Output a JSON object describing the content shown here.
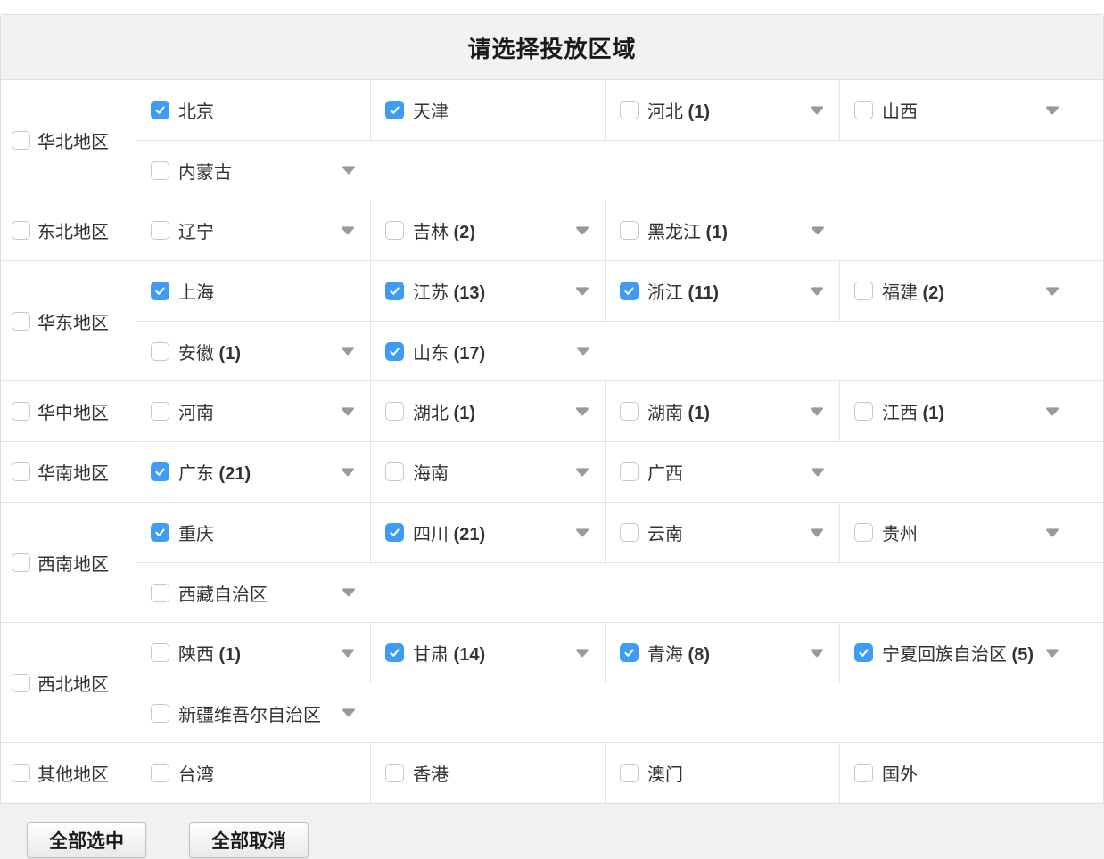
{
  "title": "请选择投放区域",
  "colors": {
    "checkbox_checked": "#3e9cf6",
    "header_bg": "#f2f2f2",
    "border": "#e3e3e3",
    "arrow": "#9a9a9a"
  },
  "buttons": {
    "select_all_label": "全部选中",
    "cancel_all_label": "全部取消"
  },
  "regions": [
    {
      "label": "华北地区",
      "checked": false,
      "provinces": [
        {
          "name": "北京",
          "checked": true,
          "count": null,
          "arrow": false
        },
        {
          "name": "天津",
          "checked": true,
          "count": null,
          "arrow": false
        },
        {
          "name": "河北",
          "checked": false,
          "count": 1,
          "arrow": true
        },
        {
          "name": "山西",
          "checked": false,
          "count": null,
          "arrow": true
        },
        {
          "name": "内蒙古",
          "checked": false,
          "count": null,
          "arrow": true
        }
      ]
    },
    {
      "label": "东北地区",
      "checked": false,
      "provinces": [
        {
          "name": "辽宁",
          "checked": false,
          "count": null,
          "arrow": true
        },
        {
          "name": "吉林",
          "checked": false,
          "count": 2,
          "arrow": true
        },
        {
          "name": "黑龙江",
          "checked": false,
          "count": 1,
          "arrow": true
        }
      ]
    },
    {
      "label": "华东地区",
      "checked": false,
      "provinces": [
        {
          "name": "上海",
          "checked": true,
          "count": null,
          "arrow": false
        },
        {
          "name": "江苏",
          "checked": true,
          "count": 13,
          "arrow": true
        },
        {
          "name": "浙江",
          "checked": true,
          "count": 11,
          "arrow": true
        },
        {
          "name": "福建",
          "checked": false,
          "count": 2,
          "arrow": true
        },
        {
          "name": "安徽",
          "checked": false,
          "count": 1,
          "arrow": true
        },
        {
          "name": "山东",
          "checked": true,
          "count": 17,
          "arrow": true
        }
      ]
    },
    {
      "label": "华中地区",
      "checked": false,
      "provinces": [
        {
          "name": "河南",
          "checked": false,
          "count": null,
          "arrow": true
        },
        {
          "name": "湖北",
          "checked": false,
          "count": 1,
          "arrow": true
        },
        {
          "name": "湖南",
          "checked": false,
          "count": 1,
          "arrow": true
        },
        {
          "name": "江西",
          "checked": false,
          "count": 1,
          "arrow": true
        }
      ]
    },
    {
      "label": "华南地区",
      "checked": false,
      "provinces": [
        {
          "name": "广东",
          "checked": true,
          "count": 21,
          "arrow": true
        },
        {
          "name": "海南",
          "checked": false,
          "count": null,
          "arrow": true
        },
        {
          "name": "广西",
          "checked": false,
          "count": null,
          "arrow": true
        }
      ]
    },
    {
      "label": "西南地区",
      "checked": false,
      "provinces": [
        {
          "name": "重庆",
          "checked": true,
          "count": null,
          "arrow": false
        },
        {
          "name": "四川",
          "checked": true,
          "count": 21,
          "arrow": true
        },
        {
          "name": "云南",
          "checked": false,
          "count": null,
          "arrow": true
        },
        {
          "name": "贵州",
          "checked": false,
          "count": null,
          "arrow": true
        },
        {
          "name": "西藏自治区",
          "checked": false,
          "count": null,
          "arrow": true
        }
      ]
    },
    {
      "label": "西北地区",
      "checked": false,
      "provinces": [
        {
          "name": "陕西",
          "checked": false,
          "count": 1,
          "arrow": true
        },
        {
          "name": "甘肃",
          "checked": true,
          "count": 14,
          "arrow": true
        },
        {
          "name": "青海",
          "checked": true,
          "count": 8,
          "arrow": true
        },
        {
          "name": "宁夏回族自治区",
          "checked": true,
          "count": 5,
          "arrow": true
        },
        {
          "name": "新疆维吾尔自治区",
          "checked": false,
          "count": null,
          "arrow": true
        }
      ]
    },
    {
      "label": "其他地区",
      "checked": false,
      "provinces": [
        {
          "name": "台湾",
          "checked": false,
          "count": null,
          "arrow": false
        },
        {
          "name": "香港",
          "checked": false,
          "count": null,
          "arrow": false
        },
        {
          "name": "澳门",
          "checked": false,
          "count": null,
          "arrow": false
        },
        {
          "name": "国外",
          "checked": false,
          "count": null,
          "arrow": false
        }
      ]
    }
  ]
}
